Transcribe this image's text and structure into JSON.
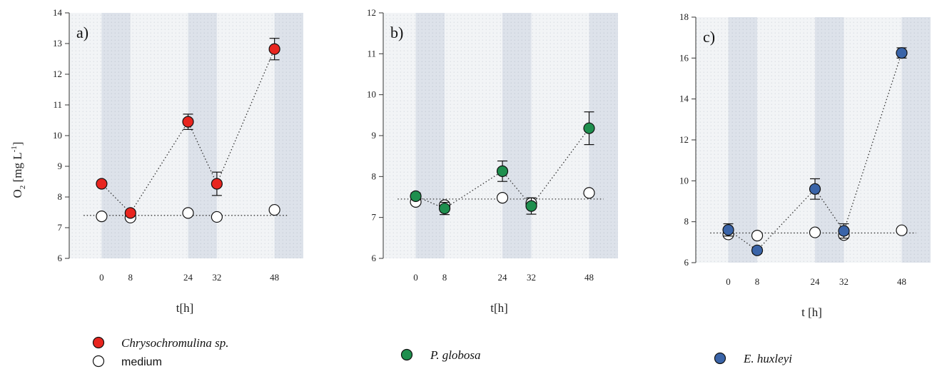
{
  "ylabel_main": "O",
  "ylabel_sub": "2",
  "ylabel_unit_pre": "[mg L",
  "ylabel_unit_sup": "-1",
  "ylabel_unit_post": "]",
  "colors": {
    "chryso": "#e8251f",
    "pglobosa": "#1f8f4e",
    "ehuxleyi": "#3a64a8",
    "medium": "#ffffff",
    "dark_band": "#dde3ea",
    "plot_bg": "#eef1f4"
  },
  "chart_data": [
    {
      "type": "scatter",
      "panel_label": "a)",
      "xlabel": "t[h]",
      "x_ticks": [
        0,
        8,
        24,
        32,
        48
      ],
      "dark_periods": [
        [
          0,
          8
        ],
        [
          24,
          32
        ],
        [
          48,
          56
        ]
      ],
      "xlim": [
        -9,
        56
      ],
      "ylim": [
        6,
        14
      ],
      "y_ticks": [
        6,
        7,
        8,
        9,
        10,
        11,
        12,
        13,
        14
      ],
      "series": [
        {
          "name": "Chrysochromulina sp.",
          "color_key": "chryso",
          "x": [
            0,
            8,
            24,
            32,
            48
          ],
          "y": [
            8.43,
            7.48,
            10.45,
            8.43,
            12.82
          ],
          "err": [
            0.08,
            0.08,
            0.25,
            0.38,
            0.35
          ]
        },
        {
          "name": "medium",
          "color_key": "medium",
          "x": [
            0,
            8,
            24,
            32,
            48
          ],
          "y": [
            7.37,
            7.33,
            7.48,
            7.35,
            7.58
          ],
          "err": [
            0,
            0,
            0,
            0,
            0
          ]
        }
      ],
      "baseline_y": 7.4
    },
    {
      "type": "scatter",
      "panel_label": "b)",
      "xlabel": "t[h]",
      "x_ticks": [
        0,
        8,
        24,
        32,
        48
      ],
      "dark_periods": [
        [
          0,
          8
        ],
        [
          24,
          32
        ],
        [
          48,
          56
        ]
      ],
      "xlim": [
        -9,
        56
      ],
      "ylim": [
        6,
        12
      ],
      "y_ticks": [
        6,
        7,
        8,
        9,
        10,
        11,
        12
      ],
      "series": [
        {
          "name": "P. globosa",
          "color_key": "pglobosa",
          "x": [
            0,
            8,
            24,
            32,
            48
          ],
          "y": [
            7.52,
            7.22,
            8.13,
            7.28,
            9.18
          ],
          "err": [
            0.08,
            0.15,
            0.25,
            0.2,
            0.4
          ]
        },
        {
          "name": "medium",
          "color_key": "medium",
          "x": [
            0,
            8,
            24,
            32,
            48
          ],
          "y": [
            7.38,
            7.3,
            7.48,
            7.35,
            7.6
          ],
          "err": [
            0,
            0,
            0,
            0,
            0
          ]
        }
      ],
      "baseline_y": 7.45
    },
    {
      "type": "scatter",
      "panel_label": "c)",
      "xlabel": "t [h]",
      "x_ticks": [
        0,
        8,
        24,
        32,
        48
      ],
      "dark_periods": [
        [
          0,
          8
        ],
        [
          24,
          32
        ],
        [
          48,
          56
        ]
      ],
      "xlim": [
        -9,
        56
      ],
      "ylim": [
        6,
        18
      ],
      "y_ticks": [
        6,
        8,
        10,
        12,
        14,
        16,
        18
      ],
      "series": [
        {
          "name": "E. huxleyi",
          "color_key": "ehuxleyi",
          "x": [
            0,
            8,
            24,
            32,
            48
          ],
          "y": [
            7.6,
            6.6,
            9.6,
            7.55,
            16.25
          ],
          "err": [
            0.3,
            0.15,
            0.5,
            0.35,
            0.25
          ]
        },
        {
          "name": "medium",
          "color_key": "medium",
          "x": [
            0,
            8,
            24,
            32,
            48
          ],
          "y": [
            7.38,
            7.32,
            7.48,
            7.35,
            7.58
          ],
          "err": [
            0,
            0,
            0,
            0,
            0
          ]
        }
      ],
      "baseline_y": 7.45
    }
  ],
  "legend": {
    "chryso_label": "Chrysochromulina sp.",
    "medium_label": "medium",
    "pglobosa_label": "P. globosa",
    "ehuxleyi_label": "E. huxleyi"
  }
}
